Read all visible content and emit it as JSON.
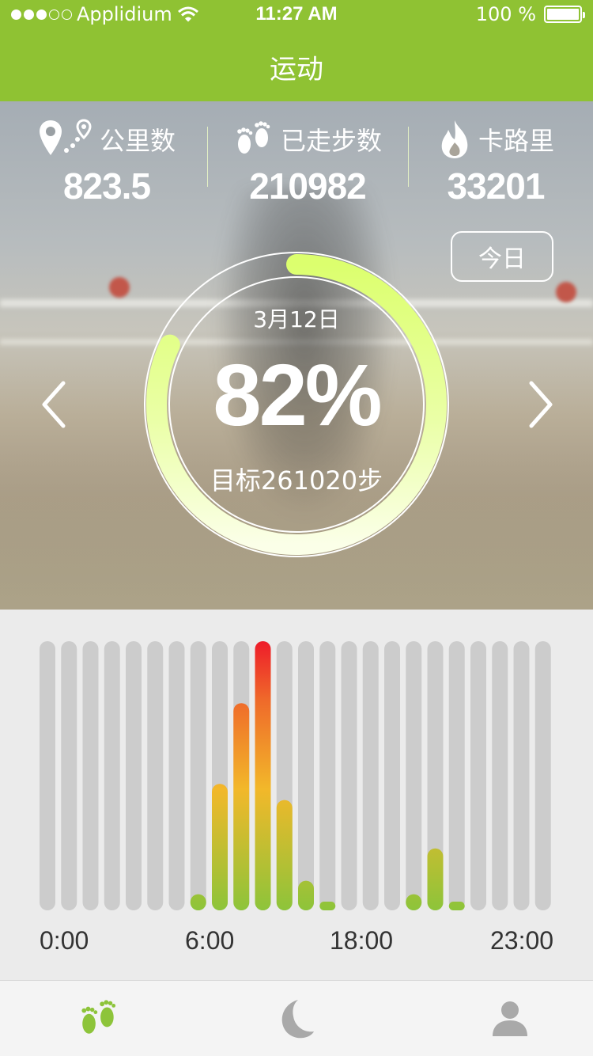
{
  "status_bar": {
    "carrier": "Applidium",
    "time": "11:27 AM",
    "battery": "100 %",
    "signal_bars_filled": 3,
    "signal_bars_total": 5
  },
  "nav": {
    "title": "运动"
  },
  "stats": [
    {
      "label": "公里数",
      "value": "823.5",
      "icon": "location-pin-icon"
    },
    {
      "label": "已走步数",
      "value": "210982",
      "icon": "footprints-icon"
    },
    {
      "label": "卡路里",
      "value": "33201",
      "icon": "flame-icon"
    }
  ],
  "today_button": "今日",
  "progress": {
    "date": "3月12日",
    "percent_label": "82%",
    "percent": 82,
    "goal": "目标261020步"
  },
  "chart_data": {
    "type": "bar",
    "max": 100,
    "values": [
      0,
      0,
      0,
      0,
      0,
      0,
      0,
      6,
      47,
      77,
      100,
      41,
      11,
      3,
      0,
      0,
      0,
      6,
      23,
      3,
      0,
      0,
      0,
      0
    ],
    "tick_labels": [
      "0:00",
      "6:00",
      "18:00",
      "23:00"
    ],
    "colors": {
      "track": "#cccccc",
      "low": "#8dc43a",
      "mid": "#f2b82a",
      "high": "#ef5a2a",
      "peak": "#ee1c2a"
    }
  },
  "tabs": [
    {
      "name": "activity",
      "icon": "footprints-icon",
      "active": true
    },
    {
      "name": "sleep",
      "icon": "moon-icon",
      "active": false
    },
    {
      "name": "profile",
      "icon": "person-icon",
      "active": false
    }
  ],
  "colors": {
    "accent": "#8fc233",
    "ring": "#e6ff8c",
    "tab_inactive": "#a9a9a9"
  }
}
